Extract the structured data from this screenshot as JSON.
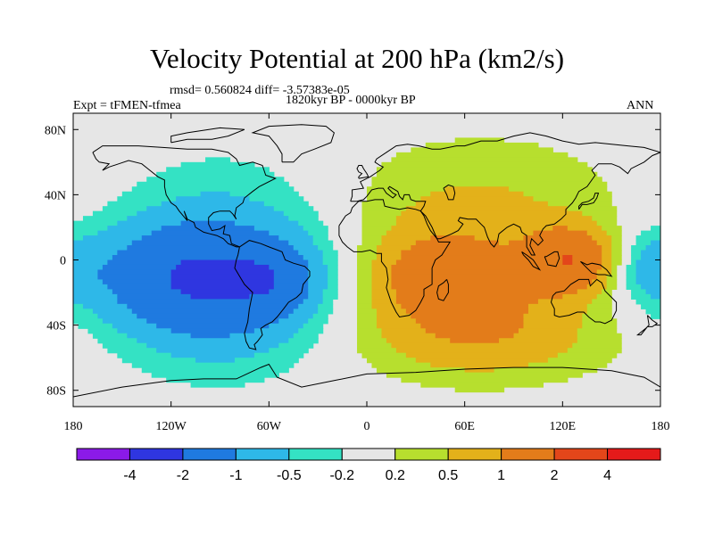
{
  "title": "Velocity Potential at 200 hPa (km2/s)",
  "stats": "rmsd= 0.560824 diff= -3.57383e-05",
  "experiment": "Expt = tFMEN-tfmea",
  "period": "1820kyr BP - 0000kyr BP",
  "season": "ANN",
  "colors": {
    "land_outline": "#000000",
    "neutral": "#e6e6e6"
  },
  "chart_data": {
    "type": "heatmap",
    "projection": "cylindrical-equidistant",
    "variable": "Velocity Potential at 200 hPa",
    "units": "km2/s",
    "xlim": [
      -180,
      180
    ],
    "ylim": [
      -90,
      90
    ],
    "x_ticks": [
      {
        "value": -180,
        "label": "180"
      },
      {
        "value": -120,
        "label": "120W"
      },
      {
        "value": -60,
        "label": "60W"
      },
      {
        "value": 0,
        "label": "0"
      },
      {
        "value": 60,
        "label": "60E"
      },
      {
        "value": 120,
        "label": "120E"
      },
      {
        "value": 180,
        "label": "180"
      }
    ],
    "y_ticks": [
      {
        "value": 80,
        "label": "80N"
      },
      {
        "value": 40,
        "label": "40N"
      },
      {
        "value": 0,
        "label": "0"
      },
      {
        "value": -40,
        "label": "40S"
      },
      {
        "value": -80,
        "label": "80S"
      }
    ],
    "contour_levels": [
      {
        "value": -4,
        "label": "-4"
      },
      {
        "value": -2,
        "label": "-2"
      },
      {
        "value": -1,
        "label": "-1"
      },
      {
        "value": -0.5,
        "label": "-0.5"
      },
      {
        "value": -0.2,
        "label": "-0.2"
      },
      {
        "value": 0.2,
        "label": "0.2"
      },
      {
        "value": 0.5,
        "label": "0.5"
      },
      {
        "value": 1,
        "label": "1"
      },
      {
        "value": 2,
        "label": "2"
      },
      {
        "value": 4,
        "label": "4"
      }
    ],
    "colorbar": [
      "#8b1ae8",
      "#2f36e0",
      "#1f7ae0",
      "#2eb8e8",
      "#34e2c4",
      "#e6e6e6",
      "#b7df2e",
      "#e3b11a",
      "#e37c1a",
      "#e3461a",
      "#e51a1a"
    ],
    "anomaly_centers": [
      {
        "lon": -110,
        "lat": -10,
        "lon_radius": 60,
        "lat_radius": 32,
        "value": -1.5
      },
      {
        "lon": -55,
        "lat": -12,
        "lon_radius": 26,
        "lat_radius": 22,
        "value": -0.8
      },
      {
        "lon": -85,
        "lat": 10,
        "lon_radius": 65,
        "lat_radius": 50,
        "value": -0.6
      },
      {
        "lon": -90,
        "lat": -40,
        "lon_radius": 60,
        "lat_radius": 35,
        "value": -0.5
      },
      {
        "lon": 60,
        "lat": -15,
        "lon_radius": 60,
        "lat_radius": 40,
        "value": 1.2
      },
      {
        "lon": 35,
        "lat": -10,
        "lon_radius": 25,
        "lat_radius": 20,
        "value": 0.6
      },
      {
        "lon": 125,
        "lat": 0,
        "lon_radius": 25,
        "lat_radius": 20,
        "value": 1.6
      },
      {
        "lon": 70,
        "lat": 40,
        "lon_radius": 90,
        "lat_radius": 40,
        "value": 0.4
      },
      {
        "lon": 80,
        "lat": -50,
        "lon_radius": 80,
        "lat_radius": 25,
        "value": 0.5
      },
      {
        "lon": 175,
        "lat": -5,
        "lon_radius": 20,
        "lat_radius": 20,
        "value": -0.6
      }
    ]
  }
}
